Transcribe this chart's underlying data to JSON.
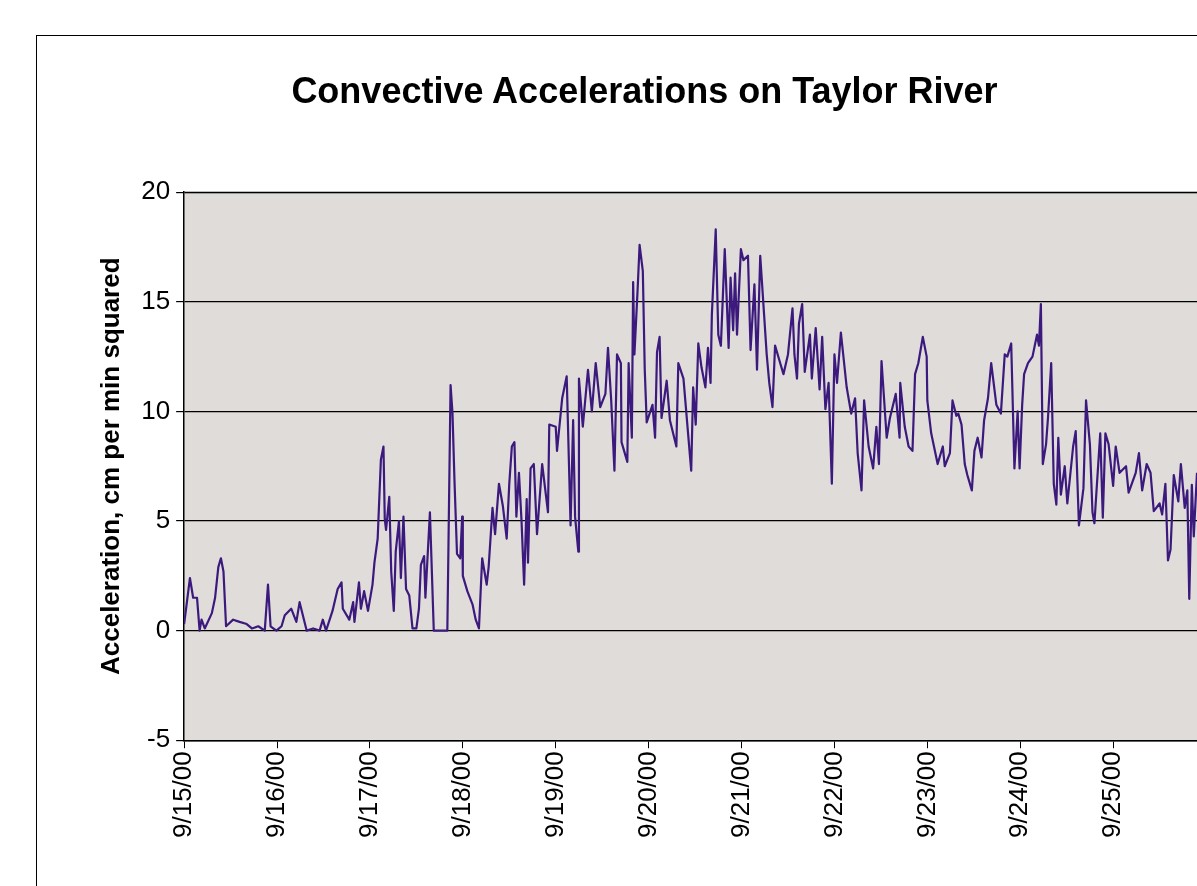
{
  "chart_data": {
    "type": "line",
    "title": "Convective Accelerations on Taylor River",
    "ylabel": "Acceleration, cm per min squared",
    "x": [
      "2000-09-15T00:00",
      "2000-09-15T01:30",
      "2000-09-15T02:20",
      "2000-09-15T03:20",
      "2000-09-15T04:00",
      "2000-09-15T04:30",
      "2000-09-15T05:20",
      "2000-09-15T07:10",
      "2000-09-15T08:00",
      "2000-09-15T08:50",
      "2000-09-15T09:30",
      "2000-09-15T10:10",
      "2000-09-15T10:50",
      "2000-09-15T12:40",
      "2000-09-15T14:20",
      "2000-09-15T16:10",
      "2000-09-15T17:30",
      "2000-09-15T19:10",
      "2000-09-15T20:50",
      "2000-09-15T21:40",
      "2000-09-15T22:20",
      "2000-09-15T23:50",
      "2000-09-16T01:10",
      "2000-09-16T02:00",
      "2000-09-16T03:40",
      "2000-09-16T05:00",
      "2000-09-16T05:50",
      "2000-09-16T07:40",
      "2000-09-16T09:20",
      "2000-09-16T11:00",
      "2000-09-16T11:50",
      "2000-09-16T12:40",
      "2000-09-16T14:20",
      "2000-09-16T15:40",
      "2000-09-16T16:40",
      "2000-09-16T17:00",
      "2000-09-16T18:40",
      "2000-09-16T19:40",
      "2000-09-16T20:00",
      "2000-09-16T21:10",
      "2000-09-16T21:40",
      "2000-09-16T22:30",
      "2000-09-16T23:30",
      "2000-09-17T00:40",
      "2000-09-17T01:10",
      "2000-09-17T02:00",
      "2000-09-17T02:50",
      "2000-09-17T03:30",
      "2000-09-17T03:50",
      "2000-09-17T04:10",
      "2000-09-17T05:00",
      "2000-09-17T05:30",
      "2000-09-17T06:10",
      "2000-09-17T06:40",
      "2000-09-17T07:30",
      "2000-09-17T08:00",
      "2000-09-17T08:40",
      "2000-09-17T09:20",
      "2000-09-17T10:10",
      "2000-09-17T11:00",
      "2000-09-17T12:00",
      "2000-09-17T12:40",
      "2000-09-17T13:10",
      "2000-09-17T14:00",
      "2000-09-17T14:20",
      "2000-09-17T15:30",
      "2000-09-17T16:30",
      "2000-09-17T20:00",
      "2000-09-17T20:50",
      "2000-09-17T21:20",
      "2000-09-17T21:50",
      "2000-09-17T22:30",
      "2000-09-17T23:20",
      "2000-09-17T23:50",
      "2000-09-18T00:00",
      "2000-09-18T01:10",
      "2000-09-18T02:30",
      "2000-09-18T03:20",
      "2000-09-18T04:10",
      "2000-09-18T05:00",
      "2000-09-18T06:10",
      "2000-09-18T06:40",
      "2000-09-18T07:40",
      "2000-09-18T08:20",
      "2000-09-18T09:20",
      "2000-09-18T10:20",
      "2000-09-18T11:20",
      "2000-09-18T12:00",
      "2000-09-18T12:40",
      "2000-09-18T13:20",
      "2000-09-18T13:50",
      "2000-09-18T14:30",
      "2000-09-18T15:10",
      "2000-09-18T15:50",
      "2000-09-18T16:30",
      "2000-09-18T16:50",
      "2000-09-18T17:30",
      "2000-09-18T18:20",
      "2000-09-18T19:10",
      "2000-09-18T20:30",
      "2000-09-18T22:00",
      "2000-09-18T22:20",
      "2000-09-19T00:00",
      "2000-09-19T00:20",
      "2000-09-19T01:40",
      "2000-09-19T02:50",
      "2000-09-19T03:50",
      "2000-09-19T04:30",
      "2000-09-19T05:00",
      "2000-09-19T05:50",
      "2000-09-19T06:00",
      "2000-09-19T07:00",
      "2000-09-19T08:20",
      "2000-09-19T09:20",
      "2000-09-19T10:20",
      "2000-09-19T11:30",
      "2000-09-19T12:50",
      "2000-09-19T13:30",
      "2000-09-19T14:20",
      "2000-09-19T15:10",
      "2000-09-19T15:50",
      "2000-09-19T16:50",
      "2000-09-19T17:00",
      "2000-09-19T18:30",
      "2000-09-19T18:50",
      "2000-09-19T19:40",
      "2000-09-19T20:00",
      "2000-09-19T20:20",
      "2000-09-19T21:10",
      "2000-09-19T21:40",
      "2000-09-19T22:30",
      "2000-09-19T23:00",
      "2000-09-19T23:30",
      "2000-09-20T01:00",
      "2000-09-20T01:40",
      "2000-09-20T02:10",
      "2000-09-20T02:50",
      "2000-09-20T03:20",
      "2000-09-20T04:40",
      "2000-09-20T05:30",
      "2000-09-20T07:10",
      "2000-09-20T07:40",
      "2000-09-20T09:00",
      "2000-09-20T11:00",
      "2000-09-20T11:30",
      "2000-09-20T12:10",
      "2000-09-20T12:50",
      "2000-09-20T13:40",
      "2000-09-20T14:40",
      "2000-09-20T15:20",
      "2000-09-20T16:00",
      "2000-09-20T16:20",
      "2000-09-20T17:20",
      "2000-09-20T18:00",
      "2000-09-20T18:40",
      "2000-09-20T19:40",
      "2000-09-20T20:40",
      "2000-09-20T21:10",
      "2000-09-20T21:50",
      "2000-09-20T22:20",
      "2000-09-20T22:50",
      "2000-09-20T23:50",
      "2000-09-21T00:30",
      "2000-09-21T01:40",
      "2000-09-21T02:20",
      "2000-09-21T03:20",
      "2000-09-21T04:00",
      "2000-09-21T04:50",
      "2000-09-21T05:50",
      "2000-09-21T06:30",
      "2000-09-21T07:10",
      "2000-09-21T08:00",
      "2000-09-21T08:40",
      "2000-09-21T10:00",
      "2000-09-21T10:50",
      "2000-09-21T12:00",
      "2000-09-21T13:10",
      "2000-09-21T13:40",
      "2000-09-21T14:20",
      "2000-09-21T14:50",
      "2000-09-21T15:40",
      "2000-09-21T16:20",
      "2000-09-21T17:40",
      "2000-09-21T18:10",
      "2000-09-21T19:10",
      "2000-09-21T20:10",
      "2000-09-21T20:50",
      "2000-09-21T21:40",
      "2000-09-21T22:30",
      "2000-09-21T23:20",
      "2000-09-22T00:00",
      "2000-09-22T00:40",
      "2000-09-22T01:40",
      "2000-09-22T03:10",
      "2000-09-22T04:20",
      "2000-09-22T05:20",
      "2000-09-22T06:00",
      "2000-09-22T07:00",
      "2000-09-22T07:40",
      "2000-09-22T08:50",
      "2000-09-22T10:00",
      "2000-09-22T10:50",
      "2000-09-22T11:30",
      "2000-09-22T12:10",
      "2000-09-22T13:30",
      "2000-09-22T14:20",
      "2000-09-22T15:50",
      "2000-09-22T16:50",
      "2000-09-22T17:00",
      "2000-09-22T18:10",
      "2000-09-22T19:10",
      "2000-09-22T20:10",
      "2000-09-22T20:50",
      "2000-09-22T21:40",
      "2000-09-22T22:50",
      "2000-09-22T23:50",
      "2000-09-23T00:00",
      "2000-09-23T01:00",
      "2000-09-23T02:40",
      "2000-09-23T04:00",
      "2000-09-23T04:30",
      "2000-09-23T05:50",
      "2000-09-23T06:30",
      "2000-09-23T07:30",
      "2000-09-23T08:00",
      "2000-09-23T08:50",
      "2000-09-23T09:40",
      "2000-09-23T10:20",
      "2000-09-23T11:30",
      "2000-09-23T12:10",
      "2000-09-23T13:00",
      "2000-09-23T14:00",
      "2000-09-23T14:40",
      "2000-09-23T15:40",
      "2000-09-23T16:30",
      "2000-09-23T17:50",
      "2000-09-23T19:00",
      "2000-09-23T20:00",
      "2000-09-23T20:40",
      "2000-09-23T21:40",
      "2000-09-23T22:30",
      "2000-09-23T23:20",
      "2000-09-23T23:50",
      "2000-09-24T00:30",
      "2000-09-24T01:00",
      "2000-09-24T02:00",
      "2000-09-24T03:10",
      "2000-09-24T04:20",
      "2000-09-24T04:50",
      "2000-09-24T05:20",
      "2000-09-24T05:50",
      "2000-09-24T06:40",
      "2000-09-24T07:10",
      "2000-09-24T08:00",
      "2000-09-24T08:40",
      "2000-09-24T09:20",
      "2000-09-24T09:50",
      "2000-09-24T10:30",
      "2000-09-24T11:30",
      "2000-09-24T12:10",
      "2000-09-24T13:40",
      "2000-09-24T14:20",
      "2000-09-24T15:10",
      "2000-09-24T16:20",
      "2000-09-24T17:00",
      "2000-09-24T18:00",
      "2000-09-24T18:40",
      "2000-09-24T19:10",
      "2000-09-24T20:40",
      "2000-09-24T21:20",
      "2000-09-24T22:00",
      "2000-09-24T22:50",
      "2000-09-25T00:00",
      "2000-09-25T00:40",
      "2000-09-25T01:40",
      "2000-09-25T03:20",
      "2000-09-25T04:00",
      "2000-09-25T05:50",
      "2000-09-25T06:40",
      "2000-09-25T07:30",
      "2000-09-25T08:40",
      "2000-09-25T09:40",
      "2000-09-25T10:30",
      "2000-09-25T12:00",
      "2000-09-25T12:40",
      "2000-09-25T13:30",
      "2000-09-25T14:10",
      "2000-09-25T14:50",
      "2000-09-25T15:40",
      "2000-09-25T16:50",
      "2000-09-25T17:30",
      "2000-09-25T18:30",
      "2000-09-25T19:10",
      "2000-09-25T19:40",
      "2000-09-25T20:20",
      "2000-09-25T20:50",
      "2000-09-25T21:40"
    ],
    "series": [
      {
        "color": "#3c1a7d",
        "values": [
          0.3,
          2.4,
          1.5,
          1.5,
          0,
          0.5,
          0.1,
          0.8,
          1.5,
          2.9,
          3.3,
          2.7,
          0.2,
          0.5,
          0.4,
          0.3,
          0.1,
          0.2,
          0,
          2.1,
          0.2,
          0,
          0.2,
          0.7,
          1.0,
          0.4,
          1.3,
          0,
          0.1,
          0,
          0.5,
          0,
          0.9,
          1.9,
          2.2,
          1.0,
          0.5,
          1.3,
          0.4,
          2.2,
          1.0,
          1.8,
          0.9,
          2.1,
          3.1,
          4.2,
          7.8,
          8.4,
          5.1,
          4.6,
          6.1,
          2.7,
          0.9,
          3.6,
          5.0,
          2.4,
          5.2,
          1.9,
          1.6,
          0.1,
          0.1,
          1.0,
          3.0,
          3.4,
          1.5,
          5.4,
          0,
          0,
          11.2,
          9.9,
          6.9,
          3.5,
          3.3,
          5.2,
          2.5,
          1.8,
          1.2,
          0.5,
          0.1,
          3.3,
          2.1,
          2.9,
          5.6,
          4.4,
          6.7,
          5.7,
          4.2,
          6.7,
          8.4,
          8.6,
          5.2,
          7.2,
          5.0,
          2.1,
          6.0,
          3.1,
          7.4,
          7.6,
          4.4,
          7.6,
          5.4,
          9.4,
          9.3,
          8.2,
          10.6,
          11.6,
          4.8,
          9.6,
          5.2,
          3.6,
          11.5,
          9.3,
          11.9,
          10.0,
          12.2,
          10.2,
          10.8,
          12.9,
          10.5,
          7.3,
          12.6,
          12.2,
          8.6,
          7.7,
          12.2,
          8.8,
          15.9,
          12.6,
          15.6,
          17.6,
          16.4,
          11.9,
          9.5,
          10.3,
          8.8,
          12.7,
          13.4,
          9.7,
          11.4,
          9.6,
          8.4,
          12.2,
          11.5,
          7.3,
          11.1,
          9.4,
          13.1,
          12.0,
          11.1,
          12.9,
          11.3,
          14.4,
          18.3,
          13.5,
          13.0,
          17.4,
          12.9,
          16.1,
          13.7,
          16.3,
          13.5,
          17.4,
          16.9,
          17.1,
          12.8,
          15.8,
          11.9,
          17.1,
          14.4,
          12.6,
          11.3,
          10.2,
          13.0,
          12.2,
          11.7,
          12.6,
          14.7,
          12.6,
          11.5,
          14.0,
          14.9,
          11.8,
          13.5,
          11.5,
          13.8,
          11.0,
          13.4,
          10.1,
          11.3,
          6.7,
          12.6,
          11.3,
          13.6,
          11.1,
          9.9,
          10.6,
          8.1,
          6.4,
          10.5,
          8.4,
          7.4,
          9.3,
          7.6,
          12.3,
          8.8,
          9.7,
          10.8,
          8.8,
          11.3,
          9.3,
          8.4,
          8.2,
          11.7,
          12.2,
          13.4,
          12.5,
          10.5,
          9.0,
          7.6,
          8.4,
          7.5,
          8.1,
          10.5,
          9.8,
          9.9,
          9.4,
          7.6,
          7.1,
          6.4,
          8.2,
          8.8,
          7.9,
          9.6,
          10.6,
          12.2,
          10.3,
          9.9,
          12.6,
          12.5,
          13.1,
          7.4,
          10.0,
          7.4,
          10.3,
          11.7,
          12.2,
          12.5,
          13.5,
          13.0,
          14.9,
          7.6,
          8.5,
          9.7,
          12.2,
          6.7,
          5.75,
          8.8,
          6.2,
          7.5,
          5.8,
          8.4,
          9.1,
          4.8,
          6.5,
          10.5,
          8.5,
          5.4,
          4.9,
          9.0,
          5.15,
          9.0,
          8.5,
          6.6,
          8.4,
          7.2,
          7.5,
          6.3,
          7.2,
          8.1,
          6.4,
          7.6,
          7.2,
          5.45,
          5.8,
          5.3,
          6.7,
          3.2,
          3.7,
          7.1,
          5.9,
          7.6,
          5.6,
          6.4,
          1.45,
          6.65,
          4.3,
          7.2
        ]
      }
    ],
    "xlim": [
      "2000-09-15T00:00",
      "2000-09-25T21:40"
    ],
    "xticks": [
      {
        "value": "2000-09-15",
        "label": "9/15/00"
      },
      {
        "value": "2000-09-16",
        "label": "9/16/00"
      },
      {
        "value": "2000-09-17",
        "label": "9/17/00"
      },
      {
        "value": "2000-09-18",
        "label": "9/18/00"
      },
      {
        "value": "2000-09-19",
        "label": "9/19/00"
      },
      {
        "value": "2000-09-20",
        "label": "9/20/00"
      },
      {
        "value": "2000-09-21",
        "label": "9/21/00"
      },
      {
        "value": "2000-09-22",
        "label": "9/22/00"
      },
      {
        "value": "2000-09-23",
        "label": "9/23/00"
      },
      {
        "value": "2000-09-24",
        "label": "9/24/00"
      },
      {
        "value": "2000-09-25",
        "label": "9/25/00"
      }
    ],
    "ylim": [
      -5,
      20
    ],
    "yticks": [
      -5,
      0,
      5,
      10,
      15,
      20
    ],
    "grid": "y",
    "marker": "none",
    "line_style": "solid"
  }
}
